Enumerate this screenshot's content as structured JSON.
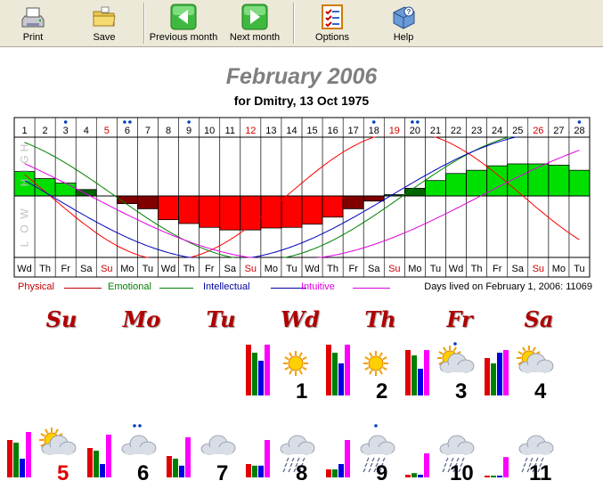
{
  "toolbar": {
    "buttons": [
      {
        "label": "Print",
        "icon": "printer-icon"
      },
      {
        "label": "Save",
        "icon": "folder-icon"
      },
      {
        "label": "Previous month",
        "icon": "arrow-left-icon"
      },
      {
        "label": "Next month",
        "icon": "arrow-right-icon"
      },
      {
        "label": "Options",
        "icon": "checklist-icon"
      },
      {
        "label": "Help",
        "icon": "help-icon"
      }
    ]
  },
  "header": {
    "title": "February 2006",
    "subtitle": "for Dmitry, 13 Oct 1975"
  },
  "chart_labels": {
    "high": "HIGH",
    "low": "LOW"
  },
  "chart_data": {
    "type": "biorhythm",
    "x": [
      1,
      2,
      3,
      4,
      5,
      6,
      7,
      8,
      9,
      10,
      11,
      12,
      13,
      14,
      15,
      16,
      17,
      18,
      19,
      20,
      21,
      22,
      23,
      24,
      25,
      26,
      27,
      28
    ],
    "weekdays": [
      "Wd",
      "Th",
      "Fr",
      "Sa",
      "Su",
      "Mo",
      "Tu",
      "Wd",
      "Th",
      "Fr",
      "Sa",
      "Su",
      "Mo",
      "Tu",
      "Wd",
      "Th",
      "Fr",
      "Sa",
      "Su",
      "Mo",
      "Tu",
      "Wd",
      "Th",
      "Fr",
      "Sa",
      "Su",
      "Mo",
      "Tu"
    ],
    "sundays": [
      5,
      12,
      19,
      26
    ],
    "marked_days": {
      "3": 1,
      "6": 2,
      "9": 1,
      "18": 1,
      "20": 2,
      "28": 1
    },
    "combined_values": [
      0.38,
      0.27,
      0.2,
      0.1,
      0,
      -0.12,
      -0.2,
      -0.37,
      -0.43,
      -0.49,
      -0.53,
      -0.53,
      -0.5,
      -0.49,
      -0.44,
      -0.33,
      -0.2,
      -0.08,
      0.02,
      0.12,
      0.24,
      0.35,
      0.4,
      0.47,
      0.5,
      0.5,
      0.48,
      0.4
    ],
    "series": [
      {
        "name": "Physical",
        "color": "#ff0000",
        "period": 23,
        "phase_day": 2.25
      },
      {
        "name": "Emotional",
        "color": "#008000",
        "period": 28,
        "phase_day": 5.4
      },
      {
        "name": "Intellectual",
        "color": "#0000c0",
        "period": 33,
        "phase_day": 2.3
      },
      {
        "name": "Intuitive",
        "color": "#e000e0",
        "period": 38,
        "phase_day": 4.2
      }
    ],
    "ylim": [
      -1,
      1
    ]
  },
  "legend": {
    "items": [
      {
        "label": "Physical",
        "color": "#c00000"
      },
      {
        "label": "Emotional",
        "color": "#008000"
      },
      {
        "label": "Intellectual",
        "color": "#0000a0"
      },
      {
        "label": "Intuitive",
        "color": "#e000e0"
      }
    ],
    "days_lived": "Days lived on February 1, 2006: 11069"
  },
  "calendar": {
    "weekday_headers": [
      "Su",
      "Mo",
      "Tu",
      "Wd",
      "Th",
      "Fr",
      "Sa"
    ],
    "days": [
      {
        "day": "1",
        "weather": "sun",
        "bars": [
          0.95,
          0.8,
          0.65,
          0.95
        ],
        "sunday": false,
        "dots": 0
      },
      {
        "day": "2",
        "weather": "sun",
        "bars": [
          0.95,
          0.8,
          0.6,
          0.95
        ],
        "sunday": false,
        "dots": 0
      },
      {
        "day": "3",
        "weather": "sun-cloud",
        "bars": [
          0.85,
          0.75,
          0.5,
          0.85
        ],
        "sunday": false,
        "dots": 1
      },
      {
        "day": "4",
        "weather": "sun-cloud",
        "bars": [
          0.7,
          0.6,
          0.8,
          0.85
        ],
        "sunday": false,
        "dots": 0
      },
      {
        "day": "5",
        "weather": "sun-cloud",
        "bars": [
          0.7,
          0.65,
          0.35,
          0.85
        ],
        "sunday": true,
        "dots": 0
      },
      {
        "day": "6",
        "weather": "cloud",
        "bars": [
          0.55,
          0.5,
          0.25,
          0.8
        ],
        "sunday": false,
        "dots": 2
      },
      {
        "day": "7",
        "weather": "cloud",
        "bars": [
          0.4,
          0.35,
          0.22,
          0.75
        ],
        "sunday": false,
        "dots": 0
      },
      {
        "day": "8",
        "weather": "rain",
        "bars": [
          0.25,
          0.22,
          0.22,
          0.7
        ],
        "sunday": false,
        "dots": 0
      },
      {
        "day": "9",
        "weather": "rain",
        "bars": [
          0.15,
          0.15,
          0.25,
          0.7
        ],
        "sunday": false,
        "dots": 1
      },
      {
        "day": "10",
        "weather": "rain",
        "bars": [
          0.05,
          0.08,
          0.05,
          0.45
        ],
        "sunday": false,
        "dots": 0
      },
      {
        "day": "11",
        "weather": "rain",
        "bars": [
          0.03,
          0.03,
          0.02,
          0.38
        ],
        "sunday": false,
        "dots": 0
      }
    ]
  }
}
